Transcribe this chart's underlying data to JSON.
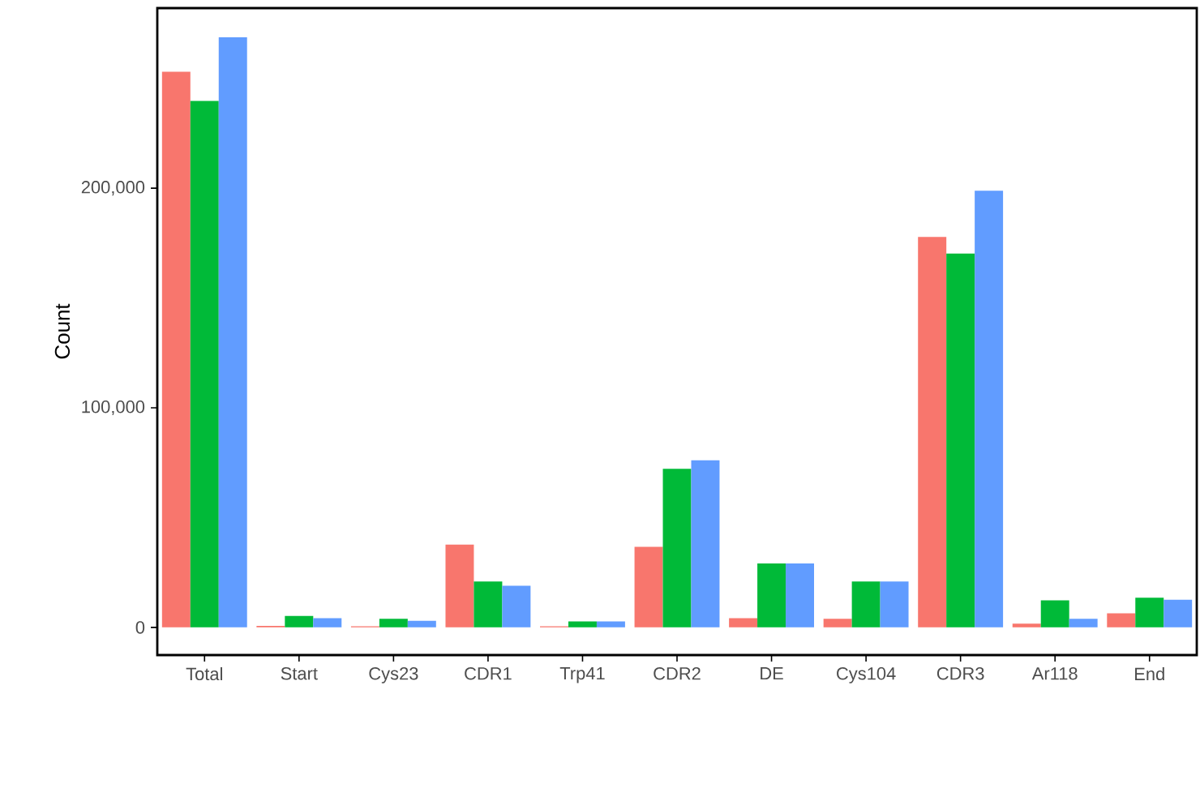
{
  "chart_data": {
    "type": "bar",
    "ylabel": "Count",
    "categories": [
      "Total",
      "Start",
      "Cys23",
      "CDR1",
      "Trp41",
      "CDR2",
      "DE",
      "Cys104",
      "CDR3",
      "Ar118",
      "End"
    ],
    "series": [
      {
        "color": "#f8766d",
        "values": [
          253000,
          700,
          500,
          37700,
          500,
          36700,
          4200,
          3900,
          177800,
          1700,
          6400
        ]
      },
      {
        "color": "#00ba38",
        "values": [
          239700,
          5200,
          3900,
          20900,
          2700,
          72200,
          29100,
          20900,
          170200,
          12300,
          13500
        ]
      },
      {
        "color": "#619cff",
        "values": [
          268700,
          4200,
          3000,
          19000,
          2700,
          76100,
          29100,
          20900,
          198800,
          3900,
          12600
        ]
      }
    ],
    "ylim": [
      -12600,
      282000
    ],
    "yticks": [
      {
        "value": 0,
        "label": "0"
      },
      {
        "value": 100000,
        "label": "100,000"
      },
      {
        "value": 200000,
        "label": "200,000"
      }
    ],
    "grid": false,
    "legend": false
  }
}
